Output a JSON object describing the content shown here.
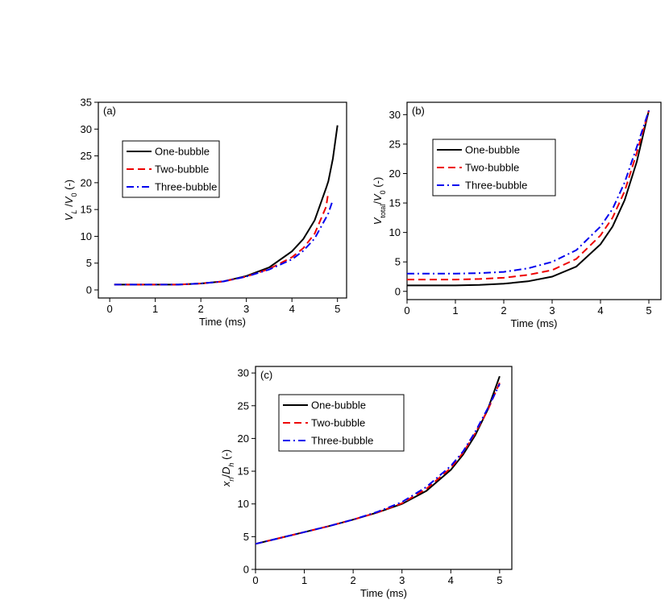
{
  "chart_data": [
    {
      "type": "line",
      "annotation": "(a)",
      "xlabel": "Time (ms)",
      "ylabel": [
        {
          "text": "V",
          "italic": true
        },
        {
          "text": "L",
          "italic": true,
          "sub": true
        },
        {
          "text": " /"
        },
        {
          "text": "V",
          "italic": true
        },
        {
          "text": "0",
          "sub": true
        },
        {
          "text": " (-)"
        }
      ],
      "xlim": [
        -0.25,
        5.2
      ],
      "ylim": [
        -1.5,
        35
      ],
      "xticks": [
        0,
        1,
        2,
        3,
        4,
        5
      ],
      "yticks": [
        0,
        5,
        10,
        15,
        20,
        25,
        30,
        35
      ],
      "legend": "upper left",
      "x": [
        0.1,
        0.5,
        1,
        1.5,
        2,
        2.5,
        3,
        3.5,
        4,
        4.25,
        4.5,
        4.75,
        4.8,
        4.9,
        5
      ],
      "series": [
        {
          "name": "One-bubble",
          "color": "#000000",
          "dash": "solid",
          "values": [
            1,
            1,
            1,
            1,
            1.2,
            1.6,
            2.6,
            4.2,
            7.2,
            9.5,
            13,
            19,
            20.3,
            24.5,
            30.7
          ]
        },
        {
          "name": "Two-bubble",
          "color": "#ee0000",
          "dash": "dashed",
          "values": [
            1,
            1,
            1,
            1,
            1.2,
            1.6,
            2.5,
            3.9,
            6.1,
            7.8,
            10.5,
            15.5,
            18.3,
            null,
            null
          ]
        },
        {
          "name": "Three-bubble",
          "color": "#0000ee",
          "dash": "dashdot",
          "values": [
            1,
            1,
            1,
            1,
            1.2,
            1.6,
            2.5,
            3.8,
            5.7,
            7.3,
            9.6,
            13.5,
            14.3,
            16.8,
            null
          ]
        }
      ]
    },
    {
      "type": "line",
      "annotation": "(b)",
      "xlabel": "Time (ms)",
      "ylabel": [
        {
          "text": "V",
          "italic": true
        },
        {
          "text": "total",
          "sub": true
        },
        {
          "text": "/"
        },
        {
          "text": "V",
          "italic": true
        },
        {
          "text": "0",
          "sub": true
        },
        {
          "text": " (-)"
        }
      ],
      "xlim": [
        0,
        5.25
      ],
      "ylim": [
        -1.4,
        32.1
      ],
      "xticks": [
        0,
        1,
        2,
        3,
        4,
        5
      ],
      "yticks": [
        0,
        5,
        10,
        15,
        20,
        25,
        30
      ],
      "legend": "upper left",
      "x": [
        0,
        0.5,
        1,
        1.5,
        2,
        2.5,
        3,
        3.5,
        4,
        4.25,
        4.5,
        4.75,
        5
      ],
      "series": [
        {
          "name": "One-bubble",
          "color": "#000000",
          "dash": "solid",
          "values": [
            1,
            1,
            1,
            1.1,
            1.3,
            1.7,
            2.5,
            4.2,
            8,
            11,
            15.5,
            22,
            30.7
          ]
        },
        {
          "name": "Two-bubble",
          "color": "#ee0000",
          "dash": "dashed",
          "values": [
            2,
            2,
            2,
            2.1,
            2.3,
            2.8,
            3.6,
            5.5,
            9.5,
            12.5,
            17,
            23.5,
            30.7
          ]
        },
        {
          "name": "Three-bubble",
          "color": "#0000ee",
          "dash": "dashdot",
          "values": [
            3,
            3,
            3,
            3.1,
            3.3,
            3.9,
            5,
            7,
            11,
            14,
            18.5,
            24.5,
            30.7
          ]
        }
      ]
    },
    {
      "type": "line",
      "annotation": "(c)",
      "xlabel": "Time (ms)",
      "ylabel": [
        {
          "text": "x",
          "italic": true
        },
        {
          "text": "rl",
          "italic": true,
          "sub": true
        },
        {
          "text": "/"
        },
        {
          "text": "D",
          "italic": true
        },
        {
          "text": "h",
          "italic": true,
          "sub": true
        },
        {
          "text": " (-)"
        }
      ],
      "xlim": [
        0,
        5.25
      ],
      "ylim": [
        0,
        31
      ],
      "xticks": [
        0,
        1,
        2,
        3,
        4,
        5
      ],
      "yticks": [
        0,
        5,
        10,
        15,
        20,
        25,
        30
      ],
      "legend": "upper left",
      "x": [
        0,
        0.5,
        1,
        1.5,
        2,
        2.5,
        3,
        3.5,
        4,
        4.25,
        4.5,
        4.75,
        5
      ],
      "series": [
        {
          "name": "One-bubble",
          "color": "#000000",
          "dash": "solid",
          "values": [
            3.9,
            4.8,
            5.7,
            6.6,
            7.6,
            8.7,
            10,
            12,
            15.2,
            17.5,
            20.5,
            24.3,
            29.5
          ]
        },
        {
          "name": "Two-bubble",
          "color": "#ee0000",
          "dash": "dashed",
          "values": [
            3.9,
            4.8,
            5.7,
            6.6,
            7.6,
            8.7,
            10.1,
            12.3,
            15.5,
            17.8,
            20.8,
            24.2,
            28.5
          ]
        },
        {
          "name": "Three-bubble",
          "color": "#0000ee",
          "dash": "dashdot",
          "values": [
            3.9,
            4.8,
            5.7,
            6.6,
            7.6,
            8.8,
            10.3,
            12.6,
            15.8,
            18,
            21,
            24.5,
            28.3
          ]
        }
      ]
    }
  ]
}
